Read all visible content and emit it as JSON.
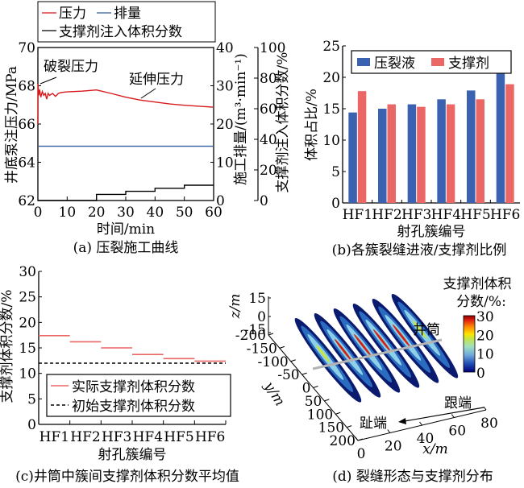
{
  "chart_data": [
    {
      "id": "a",
      "type": "line",
      "caption": "(a) 压裂施工曲线",
      "xlabel": "时间/min",
      "ylabel_left": "井底泵注压力/MPa",
      "ylabel_right1": "施工排量/(m³·min⁻¹)",
      "ylabel_right2": "支撑剂注入体积分数/%",
      "xlim": [
        0,
        60
      ],
      "xticks": [
        "0",
        "10",
        "20",
        "30",
        "40",
        "50",
        "60"
      ],
      "ylim_left": [
        62,
        70
      ],
      "yticks_left": [
        "62",
        "64",
        "66",
        "68",
        "70"
      ],
      "ylim_right1": [
        0,
        40
      ],
      "yticks_right1": [
        "0",
        "10",
        "20",
        "30",
        "40"
      ],
      "ylim_right2": [
        0,
        100
      ],
      "yticks_right2": [
        "0",
        "20",
        "40",
        "60",
        "80",
        "100"
      ],
      "legend": [
        {
          "label": "压力",
          "color": "#d7191c",
          "style": "solid"
        },
        {
          "label": "排量",
          "color": "#2c5f9e",
          "style": "solid"
        },
        {
          "label": "支撑剂注入体积分数",
          "color": "#000000",
          "style": "solid"
        }
      ],
      "annotations": [
        "破裂压力",
        "延伸压力"
      ],
      "series": [
        {
          "name": "压力",
          "axis": "left",
          "color": "#d7191c",
          "x": [
            0,
            0.05,
            0.3,
            0.6,
            1.0,
            1.5,
            2.0,
            2.5,
            3.0,
            3.5,
            4.0,
            5.0,
            6.0,
            7.0,
            8.0,
            10,
            15,
            20,
            25,
            30,
            35,
            40,
            45,
            50,
            55,
            60
          ],
          "y": [
            66.0,
            68.1,
            67.5,
            67.8,
            67.4,
            67.7,
            67.5,
            67.6,
            67.3,
            67.6,
            67.5,
            67.6,
            67.45,
            67.6,
            67.65,
            67.68,
            67.72,
            67.78,
            67.6,
            67.4,
            67.25,
            67.15,
            67.05,
            66.98,
            66.93,
            66.88
          ]
        },
        {
          "name": "排量",
          "axis": "right1",
          "color": "#2c5f9e",
          "x": [
            0,
            60
          ],
          "y": [
            14.2,
            14.2
          ]
        },
        {
          "name": "支撑剂注入体积分数",
          "axis": "right2",
          "color": "#000000",
          "x": [
            0,
            20,
            20,
            30,
            30,
            40,
            40,
            50,
            50,
            60
          ],
          "y": [
            0,
            0,
            4,
            4,
            6,
            6,
            8,
            8,
            10,
            10
          ]
        }
      ]
    },
    {
      "id": "b",
      "type": "bar",
      "caption": "(b)各簇裂缝进液/支撑剂比例",
      "xlabel": "射孔簇编号",
      "ylabel": "体积占比/%",
      "ylim": [
        0,
        25
      ],
      "yticks": [
        "0",
        "5",
        "10",
        "15",
        "20",
        "25"
      ],
      "categories": [
        "HF1",
        "HF2",
        "HF3",
        "HF4",
        "HF5",
        "HF6"
      ],
      "series": [
        {
          "name": "压裂液",
          "color": "#3a62b0",
          "values": [
            14.4,
            15.0,
            15.7,
            16.5,
            17.9,
            20.6
          ]
        },
        {
          "name": "支撑剂",
          "color": "#eb6766",
          "values": [
            17.8,
            15.7,
            15.3,
            15.7,
            16.5,
            18.9
          ]
        }
      ]
    },
    {
      "id": "c",
      "type": "line",
      "caption": "(c)井筒中簇间支撑剂体积分数平均值",
      "xlabel": "射孔簇编号",
      "ylabel": "支撑剂体积分数/%",
      "ylim": [
        0,
        30
      ],
      "yticks": [
        "0",
        "5",
        "10",
        "15",
        "20",
        "25",
        "30"
      ],
      "categories": [
        "HF1",
        "HF2",
        "HF3",
        "HF4",
        "HF5",
        "HF6"
      ],
      "series": [
        {
          "name": "实际支撑剂体积分数",
          "color": "#eb6766",
          "style": "solid-step",
          "values": [
            17.4,
            16.2,
            15.0,
            13.7,
            12.9,
            12.4
          ]
        },
        {
          "name": "初始支撑剂体积分数",
          "color": "#000000",
          "style": "dashed",
          "values": [
            12,
            12,
            12,
            12,
            12,
            12
          ]
        }
      ]
    },
    {
      "id": "d",
      "type": "heatmap",
      "caption": "(d) 裂缝形态与支撑剂分布",
      "xlabel": "x/m",
      "ylabel": "y/m",
      "zlabel": "z/m",
      "xticks": [
        "0",
        "20",
        "40",
        "60",
        "80"
      ],
      "yticks": [
        "-200",
        "-150",
        "-100",
        "-50",
        "0",
        "50",
        "100",
        "150",
        "200"
      ],
      "zticks": [
        "-15",
        "0",
        "15"
      ],
      "colorbar_title_line1": "支撑剂体积",
      "colorbar_title_line2": "分数/%:",
      "colorbar_ticks": [
        "0",
        "10",
        "20",
        "30"
      ],
      "colorbar_range": [
        0,
        30
      ],
      "annotations": {
        "wellbore": "井筒",
        "heel": "跟端",
        "toe": "趾端"
      },
      "fracture_count": 6
    }
  ]
}
